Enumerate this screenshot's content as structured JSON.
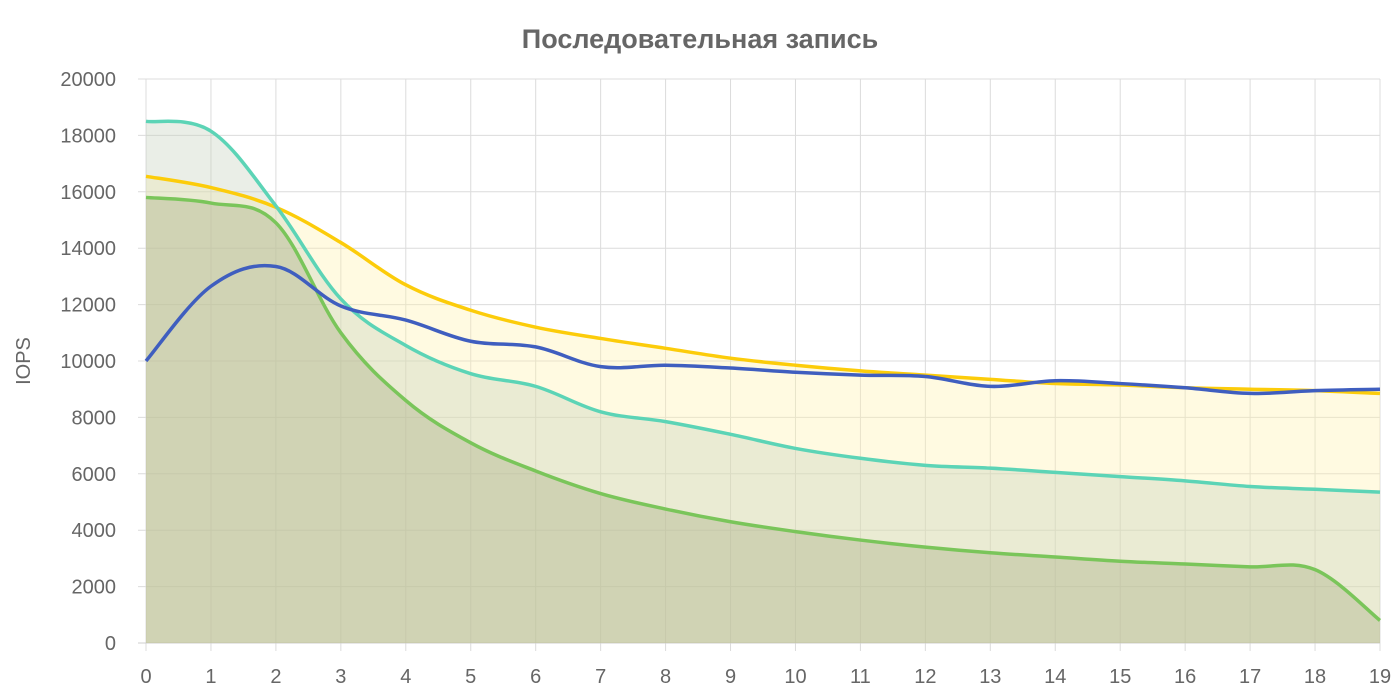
{
  "chart_data": {
    "type": "area",
    "title": "Последовательная запись",
    "xlabel": "",
    "ylabel": "IOPS",
    "x": [
      0,
      1,
      2,
      3,
      4,
      5,
      6,
      7,
      8,
      9,
      10,
      11,
      12,
      13,
      14,
      15,
      16,
      17,
      18,
      19
    ],
    "xlim": [
      0,
      19
    ],
    "ylim": [
      0,
      20000
    ],
    "yticks": [
      0,
      2000,
      4000,
      6000,
      8000,
      10000,
      12000,
      14000,
      16000,
      18000,
      20000
    ],
    "grid": true,
    "legend": "none",
    "series": [
      {
        "color": "#fccc0a",
        "fill": "rgba(255,240,170,0.35)",
        "values": [
          16550,
          16150,
          15450,
          14200,
          12700,
          11800,
          11200,
          10800,
          10450,
          10100,
          9850,
          9650,
          9500,
          9350,
          9200,
          9150,
          9050,
          9000,
          8950,
          8850
        ]
      },
      {
        "color": "#5cd4b6",
        "fill": "rgba(195,205,185,0.35)",
        "values": [
          18500,
          18150,
          15500,
          12200,
          10550,
          9550,
          9100,
          8200,
          7850,
          7400,
          6900,
          6550,
          6300,
          6200,
          6050,
          5900,
          5750,
          5550,
          5450,
          5350
        ]
      },
      {
        "color": "#7ac55a",
        "fill": "rgba(170,175,135,0.4)",
        "values": [
          15800,
          15600,
          14900,
          11000,
          8600,
          7100,
          6100,
          5300,
          4750,
          4300,
          3950,
          3650,
          3400,
          3200,
          3050,
          2900,
          2800,
          2700,
          2600,
          800
        ]
      },
      {
        "color": "#3f5ebf",
        "fill": "none",
        "values": [
          10000,
          12650,
          13350,
          11950,
          11450,
          10700,
          10500,
          9800,
          9850,
          9750,
          9600,
          9500,
          9450,
          9100,
          9300,
          9200,
          9050,
          8850,
          8950,
          9000
        ]
      }
    ]
  }
}
